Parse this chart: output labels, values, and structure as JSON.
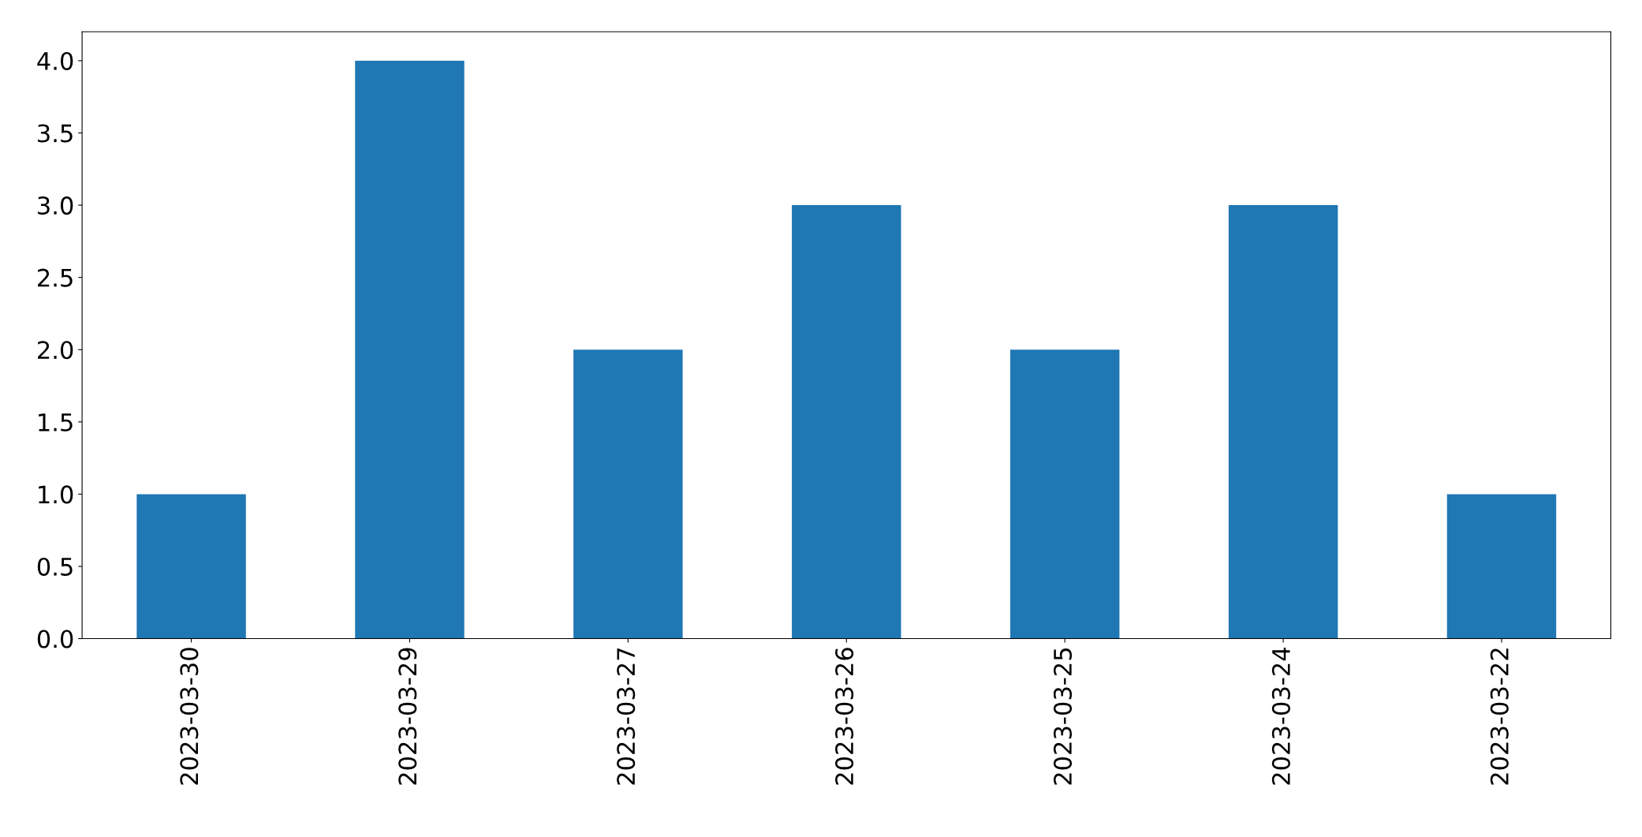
{
  "chart_data": {
    "type": "bar",
    "categories": [
      "2023-03-30",
      "2023-03-29",
      "2023-03-27",
      "2023-03-26",
      "2023-03-25",
      "2023-03-24",
      "2023-03-22"
    ],
    "values": [
      1,
      4,
      2,
      3,
      2,
      3,
      1
    ],
    "color": "#1f77b4",
    "ylim": [
      0,
      4.2
    ],
    "yticks": [
      {
        "value": 0,
        "label": "0.0"
      },
      {
        "value": 0.5,
        "label": "0.5"
      },
      {
        "value": 1,
        "label": "1.0"
      },
      {
        "value": 1.5,
        "label": "1.5"
      },
      {
        "value": 2,
        "label": "2.0"
      },
      {
        "value": 2.5,
        "label": "2.5"
      },
      {
        "value": 3,
        "label": "3.0"
      },
      {
        "value": 3.5,
        "label": "3.5"
      },
      {
        "value": 4,
        "label": "4.0"
      }
    ],
    "grid": false,
    "legend": false
  }
}
